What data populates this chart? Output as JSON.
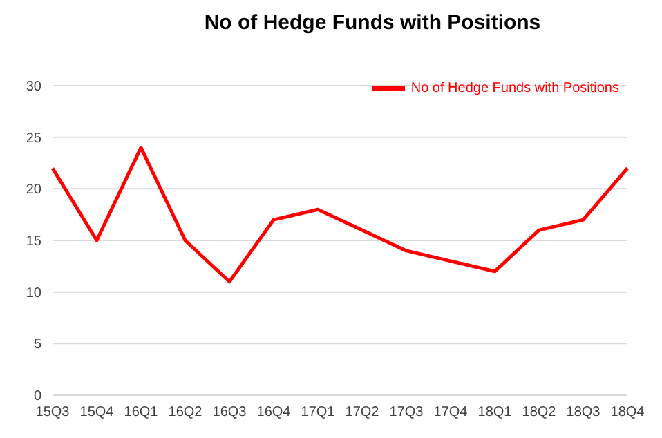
{
  "chart_data": {
    "type": "line",
    "title": "No of Hedge Funds with Positions",
    "categories": [
      "15Q3",
      "15Q4",
      "16Q1",
      "16Q2",
      "16Q3",
      "16Q4",
      "17Q1",
      "17Q2",
      "17Q3",
      "17Q4",
      "18Q1",
      "18Q2",
      "18Q3",
      "18Q4"
    ],
    "series": [
      {
        "name": "No of Hedge Funds with Positions",
        "color": "#ff0000",
        "values": [
          22,
          15,
          24,
          15,
          11,
          17,
          18,
          16,
          14,
          13,
          12,
          16,
          17,
          22
        ]
      }
    ],
    "ylim": [
      0,
      30
    ],
    "yticks": [
      0,
      5,
      10,
      15,
      20,
      25,
      30
    ],
    "grid": "y",
    "legend": "top right",
    "marker": "none",
    "line_style": "solid"
  }
}
